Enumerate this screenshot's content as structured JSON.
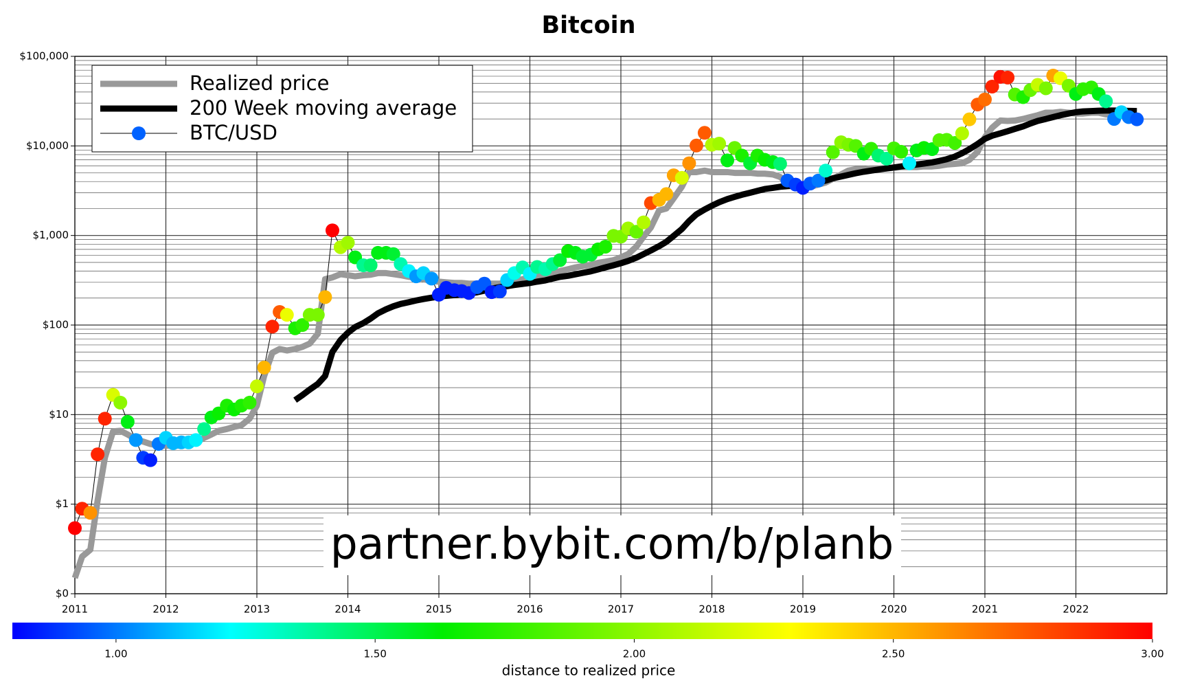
{
  "chart_data": {
    "type": "line",
    "title": "Bitcoin",
    "yscale": "log",
    "grid": true,
    "minor_grid": true,
    "legend_loc": "upper left",
    "annotation": "partner.bybit.com/b/planb",
    "xlim": [
      2011,
      2023
    ],
    "xticks": [
      2011,
      2012,
      2013,
      2014,
      2015,
      2016,
      2017,
      2018,
      2019,
      2020,
      2021,
      2022
    ],
    "ylim": [
      0.1,
      100000
    ],
    "yticks": [
      {
        "value": 0.1,
        "label": "$0"
      },
      {
        "value": 1,
        "label": "$1"
      },
      {
        "value": 10,
        "label": "$10"
      },
      {
        "value": 100,
        "label": "$100"
      },
      {
        "value": 1000,
        "label": "$1,000"
      },
      {
        "value": 10000,
        "label": "$10,000"
      },
      {
        "value": 100000,
        "label": "$100,000"
      }
    ],
    "x": [
      2011,
      2011.08,
      2011.17,
      2011.25,
      2011.33,
      2011.42,
      2011.5,
      2011.58,
      2011.67,
      2011.75,
      2011.83,
      2011.92,
      2012,
      2012.08,
      2012.17,
      2012.25,
      2012.33,
      2012.42,
      2012.5,
      2012.58,
      2012.67,
      2012.75,
      2012.83,
      2012.92,
      2013,
      2013.08,
      2013.17,
      2013.25,
      2013.33,
      2013.42,
      2013.5,
      2013.58,
      2013.67,
      2013.75,
      2013.83,
      2013.92,
      2014,
      2014.08,
      2014.17,
      2014.25,
      2014.33,
      2014.42,
      2014.5,
      2014.58,
      2014.67,
      2014.75,
      2014.83,
      2014.92,
      2015,
      2015.08,
      2015.17,
      2015.25,
      2015.33,
      2015.42,
      2015.5,
      2015.58,
      2015.67,
      2015.75,
      2015.83,
      2015.92,
      2016,
      2016.08,
      2016.17,
      2016.25,
      2016.33,
      2016.42,
      2016.5,
      2016.58,
      2016.67,
      2016.75,
      2016.83,
      2016.92,
      2017,
      2017.08,
      2017.17,
      2017.25,
      2017.33,
      2017.42,
      2017.5,
      2017.58,
      2017.67,
      2017.75,
      2017.83,
      2017.92,
      2018,
      2018.08,
      2018.17,
      2018.25,
      2018.33,
      2018.42,
      2018.5,
      2018.58,
      2018.67,
      2018.75,
      2018.83,
      2018.92,
      2019,
      2019.08,
      2019.17,
      2019.25,
      2019.33,
      2019.42,
      2019.5,
      2019.58,
      2019.67,
      2019.75,
      2019.83,
      2019.92,
      2020,
      2020.08,
      2020.17,
      2020.25,
      2020.33,
      2020.42,
      2020.5,
      2020.58,
      2020.67,
      2020.75,
      2020.83,
      2020.92,
      2021,
      2021.08,
      2021.17,
      2021.25,
      2021.33,
      2021.42,
      2021.5,
      2021.58,
      2021.67,
      2021.75,
      2021.83,
      2021.92,
      2022,
      2022.08,
      2022.17,
      2022.25,
      2022.33,
      2022.42,
      2022.5,
      2022.58,
      2022.67
    ],
    "series": [
      {
        "name": "Realized price",
        "color": "#999999",
        "values": [
          0.15,
          0.26,
          0.31,
          1.1,
          3.3,
          6.5,
          6.6,
          6.0,
          5.3,
          5.0,
          4.7,
          4.5,
          4.5,
          4.5,
          4.5,
          4.6,
          4.9,
          5.5,
          6.0,
          6.6,
          6.9,
          7.3,
          7.6,
          9.0,
          12.6,
          27,
          49,
          54,
          52,
          54,
          57,
          62,
          80,
          325,
          340,
          370,
          360,
          350,
          360,
          365,
          380,
          380,
          370,
          360,
          345,
          340,
          325,
          310,
          305,
          300,
          295,
          295,
          290,
          290,
          290,
          290,
          290,
          300,
          310,
          325,
          340,
          345,
          360,
          370,
          400,
          420,
          440,
          455,
          470,
          495,
          510,
          530,
          570,
          620,
          750,
          970,
          1230,
          1900,
          2000,
          2600,
          3500,
          5100,
          5100,
          5300,
          5100,
          5100,
          5100,
          5000,
          5000,
          5000,
          4900,
          4900,
          4800,
          4500,
          3900,
          3500,
          3400,
          3500,
          3700,
          3900,
          4300,
          4800,
          5300,
          5500,
          5500,
          5600,
          5600,
          5600,
          5700,
          5800,
          5800,
          5800,
          5900,
          5900,
          6000,
          6200,
          6300,
          6400,
          7000,
          8600,
          12500,
          16000,
          19200,
          19000,
          19200,
          20000,
          21000,
          22000,
          23500,
          23500,
          24000,
          23500,
          23000,
          23000,
          23500,
          23500,
          22500,
          22000,
          21500,
          21000,
          20500
        ]
      },
      {
        "name": "200 Week moving average",
        "color": "#000000",
        "values": [
          null,
          null,
          null,
          null,
          null,
          null,
          null,
          null,
          null,
          null,
          null,
          null,
          null,
          null,
          null,
          null,
          null,
          null,
          null,
          null,
          null,
          null,
          null,
          null,
          null,
          null,
          null,
          null,
          null,
          14.5,
          16.5,
          19,
          22,
          27,
          50,
          68,
          82,
          95,
          105,
          118,
          135,
          150,
          162,
          172,
          180,
          188,
          195,
          202,
          208,
          212,
          216,
          220,
          225,
          232,
          242,
          255,
          265,
          272,
          280,
          288,
          295,
          305,
          315,
          330,
          345,
          355,
          368,
          382,
          398,
          418,
          440,
          465,
          490,
          520,
          565,
          620,
          680,
          760,
          850,
          990,
          1180,
          1450,
          1720,
          1950,
          2150,
          2350,
          2550,
          2700,
          2850,
          3000,
          3150,
          3300,
          3400,
          3500,
          3550,
          3600,
          3650,
          3750,
          3900,
          4100,
          4350,
          4550,
          4750,
          4950,
          5150,
          5300,
          5450,
          5600,
          5750,
          5900,
          6050,
          6200,
          6350,
          6550,
          6800,
          7100,
          7600,
          8300,
          9200,
          10500,
          12000,
          13000,
          13800,
          14600,
          15500,
          16500,
          17800,
          19000,
          20000,
          21000,
          22000,
          23000,
          23800,
          24300,
          24500,
          24700,
          24800,
          24800,
          24700,
          24600,
          24500
        ]
      },
      {
        "name": "BTC/USD",
        "color": "#000000",
        "marker_color": "#0062ff",
        "values": [
          0.54,
          0.89,
          0.8,
          3.6,
          9.0,
          16.6,
          13.6,
          8.3,
          5.2,
          3.3,
          3.1,
          4.7,
          5.5,
          4.8,
          4.9,
          4.9,
          5.2,
          6.9,
          9.3,
          10.3,
          12.6,
          11.4,
          12.6,
          13.6,
          20.7,
          33.5,
          96,
          140,
          130,
          92,
          100,
          130,
          130,
          205,
          1140,
          740,
          830,
          570,
          465,
          465,
          640,
          640,
          620,
          480,
          400,
          350,
          380,
          330,
          218,
          260,
          245,
          240,
          228,
          265,
          290,
          233,
          237,
          318,
          380,
          440,
          373,
          445,
          420,
          480,
          530,
          670,
          640,
          580,
          610,
          700,
          750,
          990,
          970,
          1200,
          1100,
          1400,
          2300,
          2500,
          2900,
          4700,
          4400,
          6400,
          10100,
          14000,
          10300,
          10600,
          6900,
          9500,
          7800,
          6400,
          7800,
          7000,
          6600,
          6300,
          4100,
          3700,
          3400,
          3800,
          4100,
          5300,
          8500,
          11000,
          10300,
          10000,
          8200,
          9300,
          7800,
          7200,
          9400,
          8600,
          6400,
          8900,
          9500,
          9200,
          11600,
          11700,
          10800,
          13800,
          19800,
          29000,
          33000,
          46000,
          59000,
          58000,
          37500,
          35000,
          42000,
          48000,
          44000,
          61000,
          57000,
          47000,
          38000,
          43000,
          45000,
          38000,
          31500,
          20000,
          23800,
          21000,
          19800
        ],
        "distance": [
          3.0,
          2.9,
          2.6,
          2.9,
          2.9,
          2.2,
          2.0,
          1.6,
          1.05,
          0.9,
          0.85,
          1.0,
          1.15,
          1.1,
          1.1,
          1.15,
          1.2,
          1.4,
          1.6,
          1.65,
          1.7,
          1.65,
          1.7,
          1.75,
          2.15,
          2.5,
          2.9,
          2.75,
          2.25,
          1.7,
          1.75,
          1.95,
          1.95,
          2.5,
          3.0,
          2.1,
          2.05,
          1.6,
          1.4,
          1.45,
          1.6,
          1.6,
          1.55,
          1.35,
          1.2,
          1.05,
          1.15,
          1.05,
          0.85,
          0.85,
          0.85,
          0.85,
          0.85,
          0.95,
          0.95,
          0.85,
          0.9,
          1.15,
          1.25,
          1.35,
          1.2,
          1.4,
          1.35,
          1.4,
          1.55,
          1.65,
          1.6,
          1.55,
          1.55,
          1.65,
          1.7,
          1.95,
          1.95,
          2.05,
          1.9,
          2.1,
          2.8,
          2.5,
          2.5,
          2.55,
          2.2,
          2.6,
          2.75,
          2.75,
          2.1,
          2.05,
          1.6,
          1.9,
          1.7,
          1.55,
          1.7,
          1.65,
          1.6,
          1.45,
          0.95,
          0.9,
          0.85,
          0.95,
          1.0,
          1.3,
          1.85,
          2.0,
          1.95,
          1.85,
          1.6,
          1.75,
          1.45,
          1.4,
          1.8,
          1.75,
          1.2,
          1.6,
          1.65,
          1.6,
          1.85,
          1.85,
          1.8,
          2.1,
          2.45,
          2.75,
          2.7,
          2.9,
          2.95,
          2.9,
          1.85,
          1.7,
          1.9,
          2.15,
          1.95,
          2.55,
          2.25,
          1.95,
          1.6,
          1.75,
          1.75,
          1.6,
          1.4,
          1.0,
          1.15,
          1.0,
          0.95
        ]
      }
    ],
    "colorbar": {
      "label": "distance to realized price",
      "clim": [
        0.8,
        3.0
      ],
      "ticks": [
        {
          "value": 1,
          "label": "1.00"
        },
        {
          "value": 1.5,
          "label": "1.50"
        },
        {
          "value": 2,
          "label": "2.00"
        },
        {
          "value": 2.5,
          "label": "2.50"
        },
        {
          "value": 3,
          "label": "3.00"
        }
      ],
      "stops": [
        0.8,
        1.22,
        1.63,
        2.3,
        3.0
      ],
      "colors": [
        "#0000ff",
        "#00ffff",
        "#00ee00",
        "#ffff00",
        "#ff0000"
      ]
    }
  }
}
